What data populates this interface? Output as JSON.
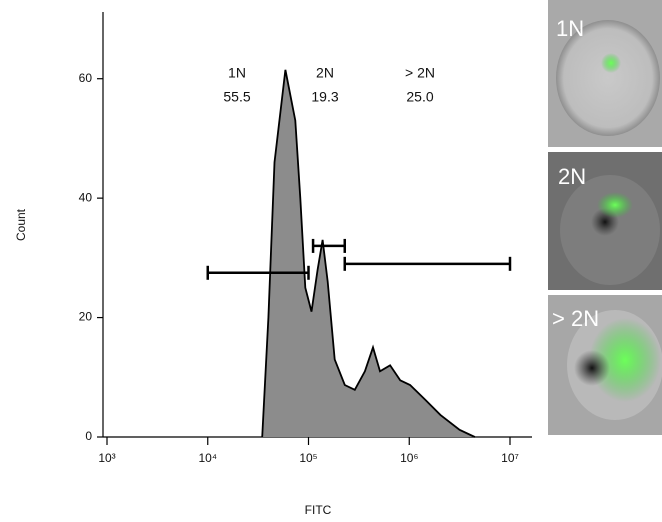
{
  "chart_data": {
    "type": "area",
    "log_x": true,
    "x_label": "FITC",
    "y_label": "Count",
    "x": [
      34700,
      40000,
      46000,
      59000,
      74000,
      83000,
      93000,
      107000,
      123000,
      138000,
      155000,
      182000,
      229000,
      288000,
      363000,
      437000,
      513000,
      646000,
      813000,
      1020000,
      1450000,
      2040000,
      3160000,
      4470000
    ],
    "values": [
      0,
      20,
      46,
      61.5,
      53,
      40,
      25,
      21,
      28,
      33,
      26,
      13,
      8.7,
      7.9,
      11,
      15,
      11,
      12,
      9.5,
      8.7,
      6.2,
      3.7,
      1.2,
      0
    ],
    "color": "#8c8c8c",
    "xlim": [
      1000,
      10000000
    ],
    "xticks": [
      {
        "value": 1000,
        "label": "10³"
      },
      {
        "value": 10000,
        "label": "10⁴"
      },
      {
        "value": 100000,
        "label": "10⁵"
      },
      {
        "value": 1000000,
        "label": "10⁶"
      },
      {
        "value": 10000000,
        "label": "10⁷"
      }
    ],
    "ylim": [
      0,
      70
    ],
    "yticks": [
      0,
      20,
      40,
      60
    ],
    "gates": {
      "names": [
        "1N",
        "2N",
        "> 2N"
      ],
      "values": [
        55.5,
        19.3,
        25
      ],
      "value_labels": [
        "55.5",
        "19.3",
        "25.0"
      ],
      "ranges": [
        [
          10000,
          100000
        ],
        [
          111000,
          229000
        ],
        [
          229000,
          10000000
        ]
      ],
      "levels": [
        27.5,
        32,
        29
      ]
    }
  },
  "panels": {
    "labels": [
      "1N",
      "2N",
      "> 2N"
    ]
  }
}
